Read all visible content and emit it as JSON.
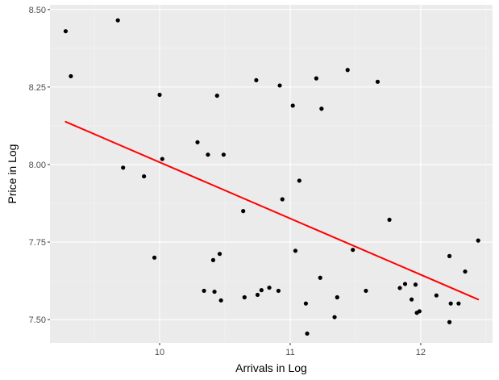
{
  "chart_data": {
    "type": "scatter",
    "title": "",
    "xlabel": "Arrivals in Log",
    "ylabel": "Price in Log",
    "xlim": [
      9.16,
      12.55
    ],
    "ylim": [
      7.425,
      8.515
    ],
    "x_ticks": [
      10,
      11,
      12
    ],
    "x_tick_labels": [
      "10",
      "11",
      "12"
    ],
    "y_ticks": [
      7.5,
      7.75,
      8.0,
      8.25,
      8.5
    ],
    "y_tick_labels": [
      "7.50",
      "7.75",
      "8.00",
      "8.25",
      "8.50"
    ],
    "grid": true,
    "legend": "none",
    "colors": {
      "panel_background": "#ebebeb",
      "grid_major": "#ffffff",
      "grid_minor": "#f5f5f5",
      "points": "#000000",
      "fit_line": "#ff0000"
    },
    "series": [
      {
        "points": [
          [
            9.28,
            8.43
          ],
          [
            9.32,
            8.285
          ],
          [
            9.68,
            8.465
          ],
          [
            9.72,
            7.99
          ],
          [
            9.88,
            7.962
          ],
          [
            9.96,
            7.7
          ],
          [
            10.0,
            8.225
          ],
          [
            10.02,
            8.018
          ],
          [
            10.29,
            8.072
          ],
          [
            10.34,
            7.593
          ],
          [
            10.37,
            8.032
          ],
          [
            10.41,
            7.692
          ],
          [
            10.42,
            7.59
          ],
          [
            10.44,
            8.222
          ],
          [
            10.46,
            7.712
          ],
          [
            10.47,
            7.562
          ],
          [
            10.49,
            8.032
          ],
          [
            10.64,
            7.85
          ],
          [
            10.65,
            7.572
          ],
          [
            10.74,
            8.272
          ],
          [
            10.75,
            7.58
          ],
          [
            10.78,
            7.595
          ],
          [
            10.84,
            7.603
          ],
          [
            10.91,
            7.593
          ],
          [
            10.92,
            8.255
          ],
          [
            10.94,
            7.888
          ],
          [
            11.02,
            8.19
          ],
          [
            11.04,
            7.722
          ],
          [
            11.07,
            7.948
          ],
          [
            11.12,
            7.552
          ],
          [
            11.13,
            7.455
          ],
          [
            11.2,
            8.278
          ],
          [
            11.23,
            7.635
          ],
          [
            11.24,
            8.18
          ],
          [
            11.34,
            7.508
          ],
          [
            11.36,
            7.572
          ],
          [
            11.44,
            8.305
          ],
          [
            11.48,
            7.725
          ],
          [
            11.58,
            7.593
          ],
          [
            11.67,
            8.267
          ],
          [
            11.76,
            7.822
          ],
          [
            11.84,
            7.602
          ],
          [
            11.88,
            7.615
          ],
          [
            11.93,
            7.565
          ],
          [
            11.96,
            7.613
          ],
          [
            11.97,
            7.522
          ],
          [
            11.99,
            7.527
          ],
          [
            12.12,
            7.578
          ],
          [
            12.22,
            7.705
          ],
          [
            12.22,
            7.492
          ],
          [
            12.23,
            7.552
          ],
          [
            12.29,
            7.552
          ],
          [
            12.34,
            7.655
          ],
          [
            12.44,
            7.755
          ]
        ]
      }
    ],
    "fit_line": {
      "method": "linear",
      "x": [
        9.28,
        12.44
      ],
      "y": [
        8.138,
        7.565
      ]
    }
  }
}
